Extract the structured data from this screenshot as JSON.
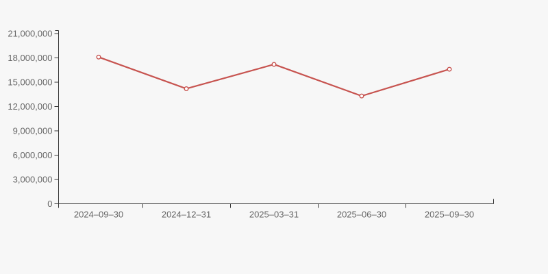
{
  "chart_data": {
    "type": "line",
    "title": "",
    "xlabel": "",
    "ylabel": "",
    "categories": [
      "2024–09–30",
      "2024–12–31",
      "2025–03–31",
      "2025–06–30",
      "2025–09–30"
    ],
    "values": [
      18100000,
      14200000,
      17200000,
      13300000,
      16600000
    ],
    "ylim": [
      0,
      21000000
    ],
    "y_ticks": [
      0,
      3000000,
      6000000,
      9000000,
      12000000,
      15000000,
      18000000,
      21000000
    ],
    "y_tick_labels": [
      "0",
      "3,000,000",
      "6,000,000",
      "9,000,000",
      "12,000,000",
      "15,000,000",
      "18,000,000",
      "21,000,000"
    ],
    "grid": false,
    "legend": false,
    "marker": "hollow-circle",
    "colors": {
      "line": "#c75450",
      "marker_fill": "#ffffff",
      "axis": "#383838",
      "label": "#666666",
      "background": "#f7f7f7"
    }
  }
}
